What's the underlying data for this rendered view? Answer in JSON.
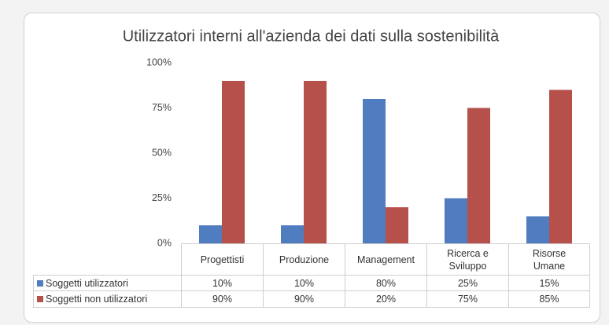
{
  "chart_data": {
    "type": "bar",
    "title": "Utilizzatori interni all'azienda dei dati sulla sostenibilità",
    "categories": [
      "Progettisti",
      "Produzione",
      "Management",
      "Ricerca e Sviluppo",
      "Risorse Umane"
    ],
    "series": [
      {
        "name": "Soggetti utilizzatori",
        "color": "#4f7dbf",
        "values": [
          10,
          10,
          80,
          25,
          15
        ],
        "value_labels": [
          "10%",
          "10%",
          "80%",
          "25%",
          "15%"
        ]
      },
      {
        "name": "Soggetti non utilizzatori",
        "color": "#b6504b",
        "values": [
          90,
          90,
          20,
          75,
          85
        ],
        "value_labels": [
          "90%",
          "90%",
          "20%",
          "75%",
          "85%"
        ]
      }
    ],
    "ylim": [
      0,
      100
    ],
    "yticks": [
      {
        "value": 0,
        "label": "0%"
      },
      {
        "value": 25,
        "label": "25%"
      },
      {
        "value": 50,
        "label": "50%"
      },
      {
        "value": 75,
        "label": "75%"
      },
      {
        "value": 100,
        "label": "100%"
      }
    ],
    "grid": false
  }
}
